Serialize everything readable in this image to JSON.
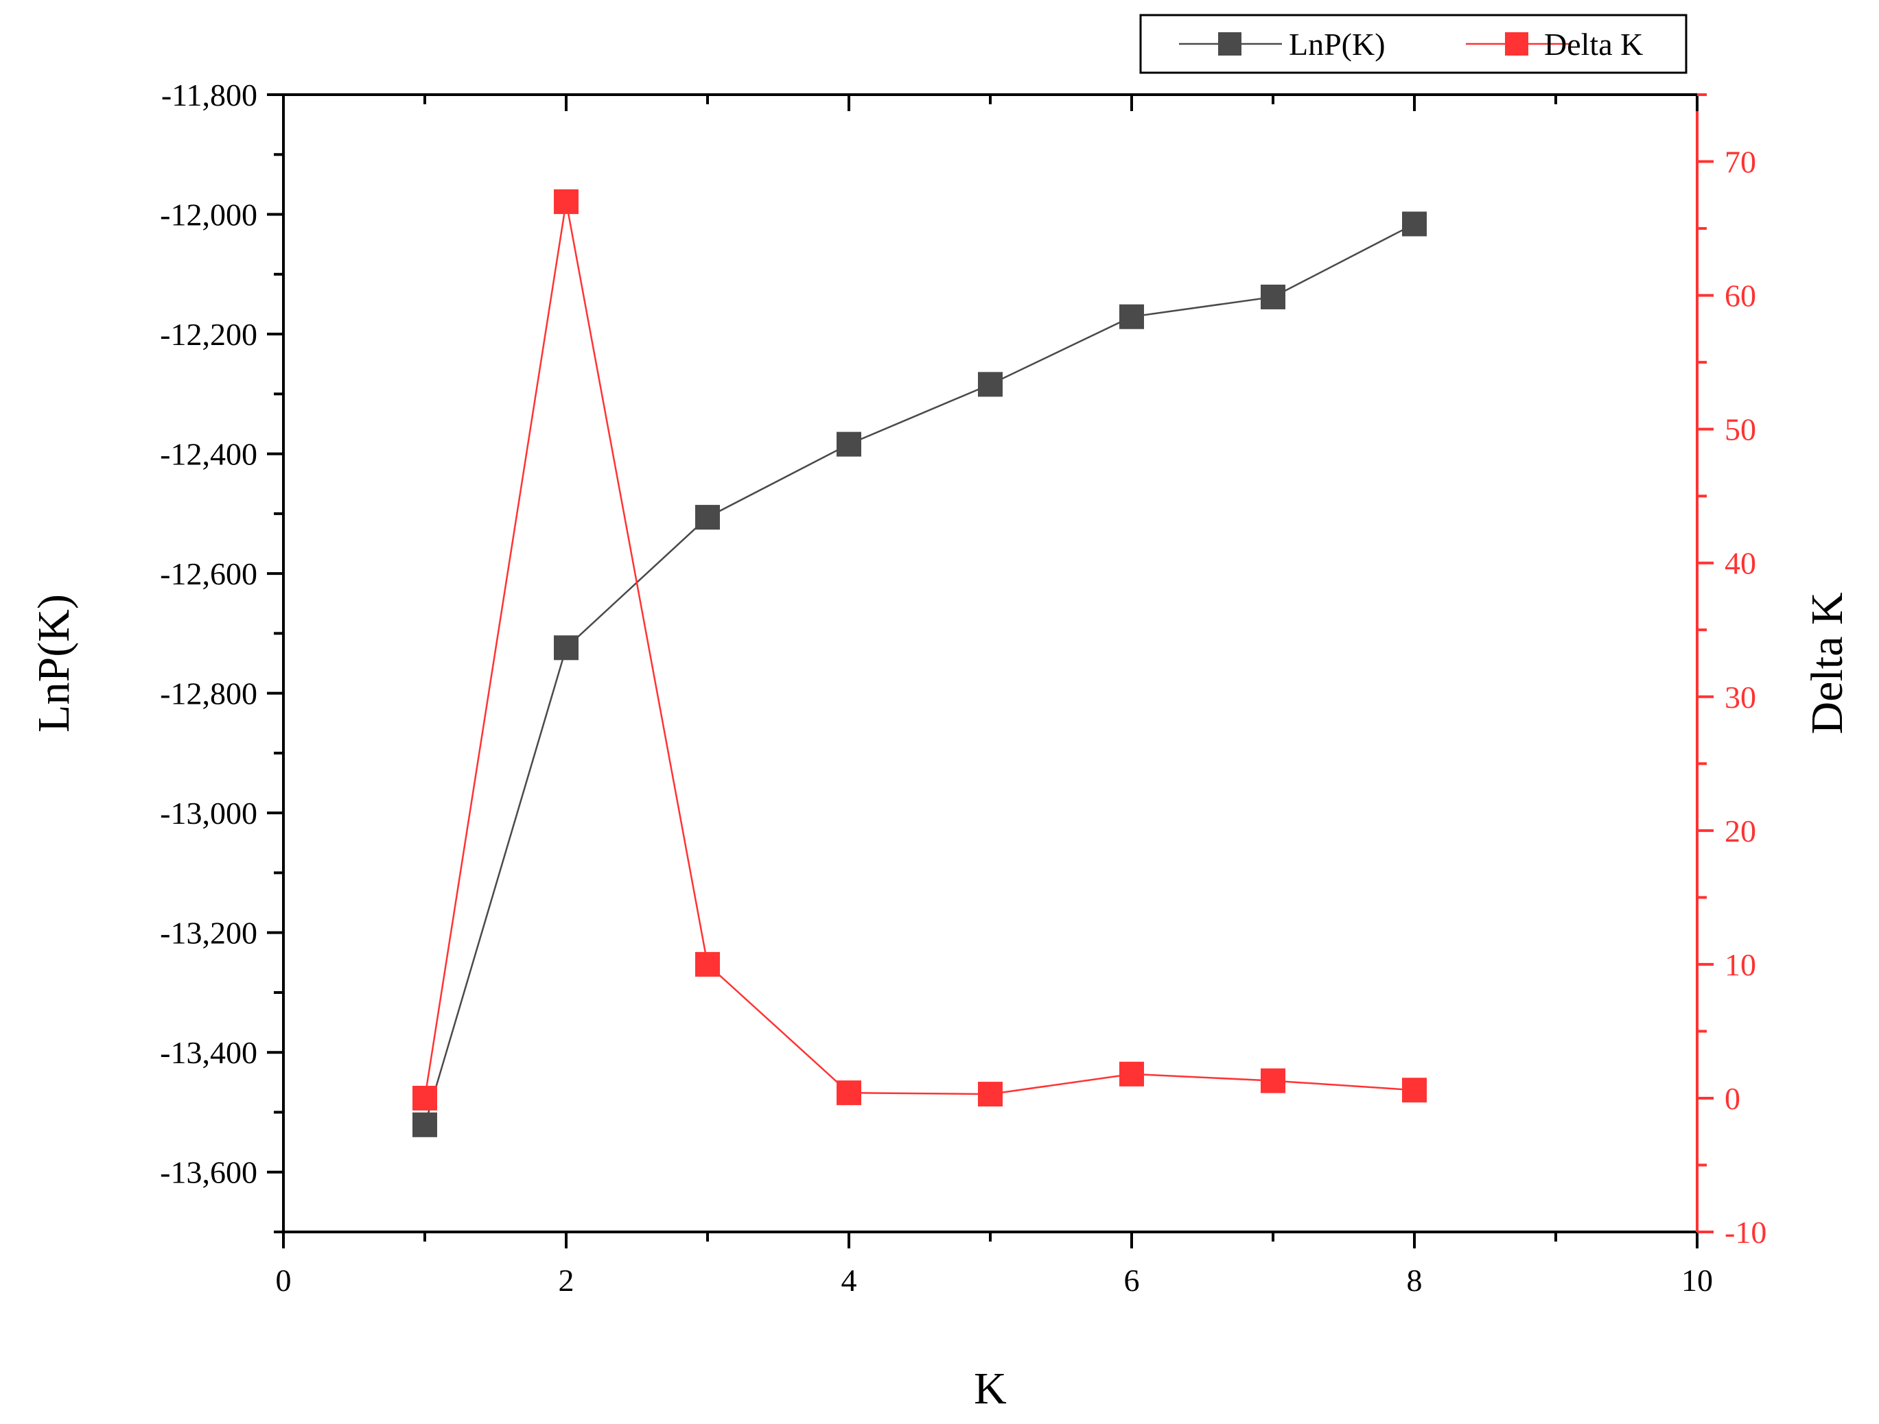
{
  "chart_data": {
    "type": "line",
    "xlabel": "K",
    "ylabel": "LnP(K)",
    "y2label": "Delta K",
    "xlim": [
      0,
      10
    ],
    "ylim": [
      -13700,
      -11800
    ],
    "y2lim": [
      -10,
      75
    ],
    "xticks": [
      0,
      2,
      4,
      6,
      8,
      10
    ],
    "xtick_labels": [
      "0",
      "2",
      "4",
      "6",
      "8",
      "10"
    ],
    "yticks": [
      -11800,
      -12000,
      -12200,
      -12400,
      -12600,
      -12800,
      -13000,
      -13200,
      -13400,
      -13600
    ],
    "ytick_labels": [
      "-11,800",
      "-12,000",
      "-12,200",
      "-12,400",
      "-12,600",
      "-12,800",
      "-13,000",
      "-13,200",
      "-13,400",
      "-13,600"
    ],
    "y2ticks": [
      70,
      60,
      50,
      40,
      30,
      20,
      10,
      0,
      -10
    ],
    "y2tick_labels": [
      "70",
      "60",
      "50",
      "40",
      "30",
      "20",
      "10",
      "0",
      "-10"
    ],
    "grid": false,
    "legend_position": "top-right",
    "series": [
      {
        "name": "LnP(K)",
        "axis": "left",
        "color": "#4a4a4a",
        "marker": "square",
        "x": [
          1,
          2,
          3,
          4,
          5,
          6,
          7,
          8
        ],
        "values": [
          -13521,
          -12724,
          -12506,
          -12384,
          -12284,
          -12171,
          -12138,
          -12016
        ]
      },
      {
        "name": "Delta K",
        "axis": "right",
        "color": "#ff3333",
        "marker": "square",
        "x": [
          1,
          2,
          3,
          4,
          5,
          6,
          7,
          8
        ],
        "values": [
          0,
          67,
          10,
          0.4,
          0.3,
          1.8,
          1.3,
          0.6
        ]
      }
    ]
  }
}
